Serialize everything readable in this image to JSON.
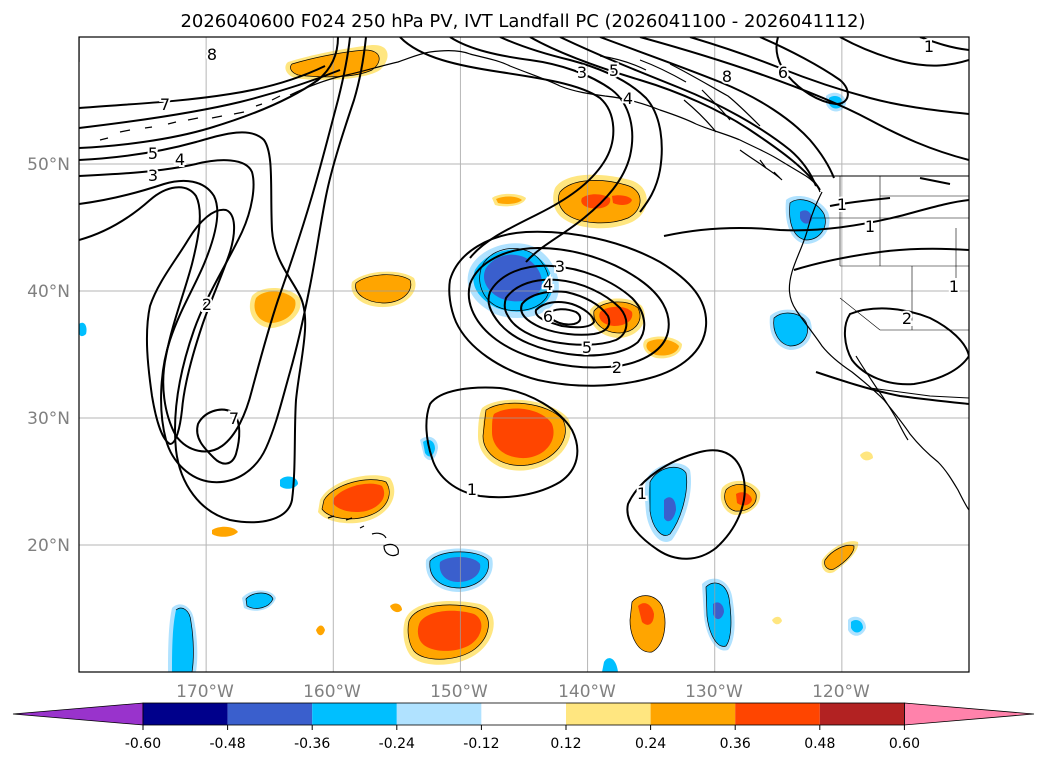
{
  "title": "2026040600 F024 250 hPa PV, IVT Landfall PC (2026041100 - 2026041112)",
  "map": {
    "projection": "PlateCarree",
    "lon_range": [
      -180,
      -110
    ],
    "lat_range": [
      10,
      60
    ],
    "lon_ticks": [
      {
        "lon": -170,
        "label": "170°W"
      },
      {
        "lon": -160,
        "label": "160°W"
      },
      {
        "lon": -150,
        "label": "150°W"
      },
      {
        "lon": -140,
        "label": "140°W"
      },
      {
        "lon": -130,
        "label": "130°W"
      },
      {
        "lon": -120,
        "label": "120°W"
      }
    ],
    "lat_ticks": [
      {
        "lat": 20,
        "label": "20°N"
      },
      {
        "lat": 30,
        "label": "30°N"
      },
      {
        "lat": 40,
        "label": "40°N"
      },
      {
        "lat": 50,
        "label": "50°N"
      }
    ],
    "grid": true,
    "pv_contour_labels": [
      "8",
      "7",
      "6",
      "5",
      "4",
      "3",
      "2",
      "1"
    ]
  },
  "colorbar": {
    "orientation": "horizontal",
    "extend": "both",
    "ticks": [
      "-0.60",
      "-0.48",
      "-0.36",
      "-0.24",
      "-0.12",
      "0.12",
      "0.24",
      "0.36",
      "0.48",
      "0.60"
    ],
    "colors": [
      "#9933cc",
      "#00008b",
      "#3a5fcd",
      "#00bfff",
      "#b0e2ff",
      "#ffffff",
      "#ffe680",
      "#ffa500",
      "#ff4500",
      "#b22222",
      "#ff82ab"
    ]
  },
  "legend_colors": {
    "neg_light": "#b0e2ff",
    "neg_mid": "#00bfff",
    "neg_strong": "#3a5fcd",
    "pos_light": "#ffe680",
    "pos_mid": "#ffa500",
    "pos_strong": "#ff4500"
  }
}
